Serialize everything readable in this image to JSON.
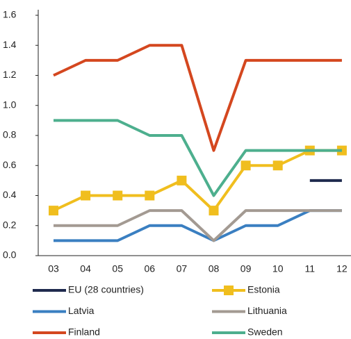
{
  "chart_data": {
    "type": "line",
    "categories": [
      "03",
      "04",
      "05",
      "06",
      "07",
      "08",
      "09",
      "10",
      "11",
      "12"
    ],
    "series": [
      {
        "name": "EU (28 countries)",
        "color": "#1f2a4e",
        "values": [
          null,
          null,
          null,
          null,
          null,
          null,
          null,
          null,
          0.5,
          0.5
        ]
      },
      {
        "name": "Estonia",
        "color": "#f0be1e",
        "marker": "square",
        "values": [
          0.3,
          0.4,
          0.4,
          0.4,
          0.5,
          0.3,
          0.6,
          0.6,
          0.7,
          0.7
        ]
      },
      {
        "name": "Latvia",
        "color": "#3a7fc1",
        "values": [
          0.1,
          0.1,
          0.1,
          0.2,
          0.2,
          0.1,
          0.2,
          0.2,
          0.3,
          0.3
        ]
      },
      {
        "name": "Lithuania",
        "color": "#a39a92",
        "values": [
          0.2,
          0.2,
          0.2,
          0.3,
          0.3,
          0.1,
          0.3,
          0.3,
          0.3,
          0.3
        ]
      },
      {
        "name": "Finland",
        "color": "#d4471f",
        "values": [
          1.2,
          1.3,
          1.3,
          1.4,
          1.4,
          0.7,
          1.3,
          1.3,
          1.3,
          1.3
        ]
      },
      {
        "name": "Sweden",
        "color": "#4daf8e",
        "values": [
          0.9,
          0.9,
          0.9,
          0.8,
          0.8,
          0.4,
          0.7,
          0.7,
          0.7,
          0.7
        ]
      }
    ],
    "ylim": [
      0,
      1.6
    ],
    "yticks": [
      {
        "value": 0,
        "label": "0.0"
      },
      0.2,
      0.4,
      0.6,
      0.8,
      {
        "value": 1,
        "label": "1.0"
      },
      1.2,
      1.4,
      1.6
    ],
    "legend": "bottom"
  }
}
